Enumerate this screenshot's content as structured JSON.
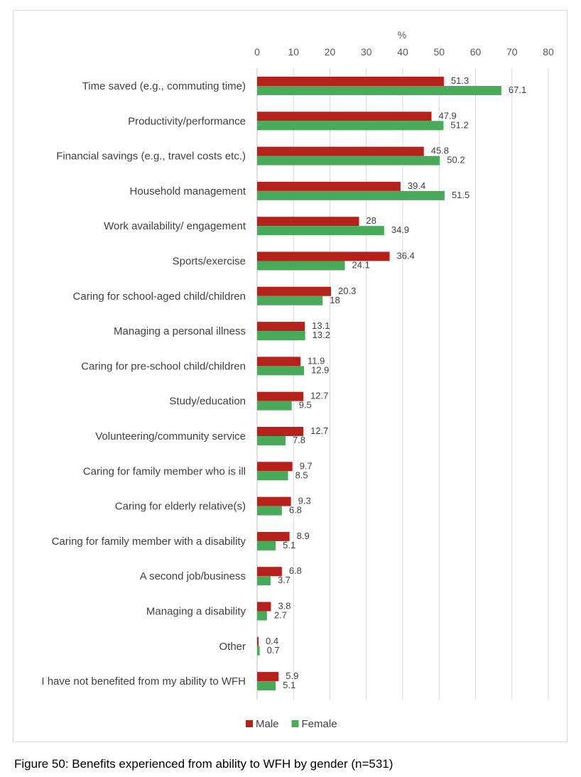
{
  "figure_caption": "Figure 50: Benefits experienced from ability to WFH by gender (n=531)",
  "chart_data": {
    "type": "bar",
    "orientation": "horizontal",
    "title": "",
    "xlabel": "%",
    "ylabel": "",
    "xlim": [
      0,
      80
    ],
    "x_ticks": [
      0,
      10,
      20,
      30,
      40,
      50,
      60,
      70,
      80
    ],
    "x_axis_position": "top",
    "grid": "vertical",
    "legend": "bottom",
    "categories": [
      "Time saved (e.g., commuting time)",
      "Productivity/performance",
      "Financial savings (e.g., travel costs etc.)",
      "Household management",
      "Work availability/ engagement",
      "Sports/exercise",
      "Caring for school-aged child/children",
      "Managing a personal illness",
      "Caring for pre-school child/children",
      "Study/education",
      "Volunteering/community service",
      "Caring for family member who is ill",
      "Caring for elderly relative(s)",
      "Caring for family member with a disability",
      "A second job/business",
      "Managing a disability",
      "Other",
      "I have not benefited from my ability to WFH"
    ],
    "series": [
      {
        "name": "Male",
        "color": "#b5221c",
        "values": [
          51.3,
          47.9,
          45.8,
          39.4,
          28,
          36.4,
          20.3,
          13.1,
          11.9,
          12.7,
          12.7,
          9.7,
          9.3,
          8.9,
          6.8,
          3.8,
          0.4,
          5.9
        ]
      },
      {
        "name": "Female",
        "color": "#4aaa5c",
        "values": [
          67.1,
          51.2,
          50.2,
          51.5,
          34.9,
          24.1,
          18,
          13.2,
          12.9,
          9.5,
          7.8,
          8.5,
          6.8,
          5.1,
          3.7,
          2.7,
          0.7,
          5.1
        ]
      }
    ]
  }
}
